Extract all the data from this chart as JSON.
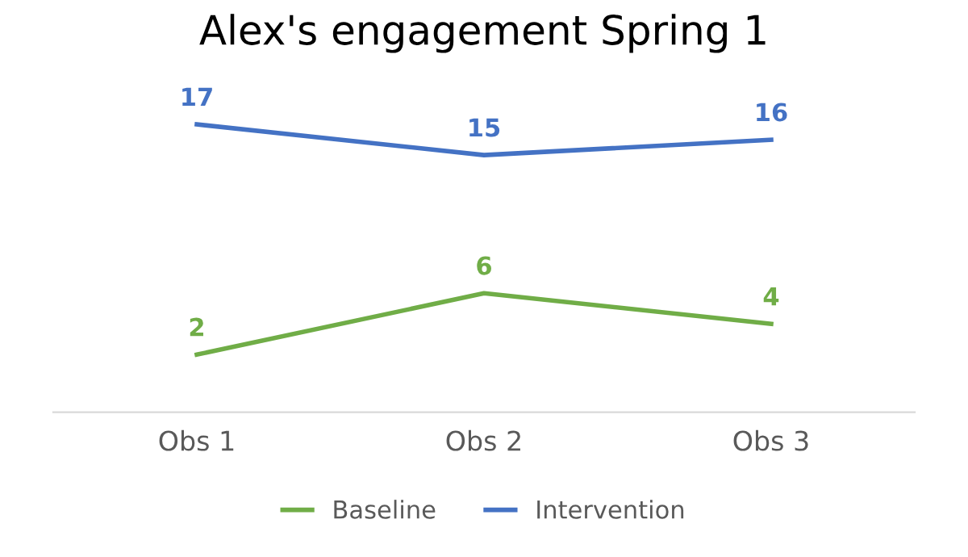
{
  "chart_data": {
    "type": "line",
    "title": "Alex's engagement Spring 1",
    "categories": [
      "Obs 1",
      "Obs 2",
      "Obs 3"
    ],
    "series": [
      {
        "name": "Baseline",
        "color": "#70ad47",
        "values": [
          2,
          6,
          4
        ]
      },
      {
        "name": "Intervention",
        "color": "#4472c4",
        "values": [
          17,
          15,
          16
        ]
      }
    ],
    "tick_labels": "x",
    "data_labels": true,
    "grid": false,
    "legend": "bottom",
    "line_style": "solid"
  }
}
